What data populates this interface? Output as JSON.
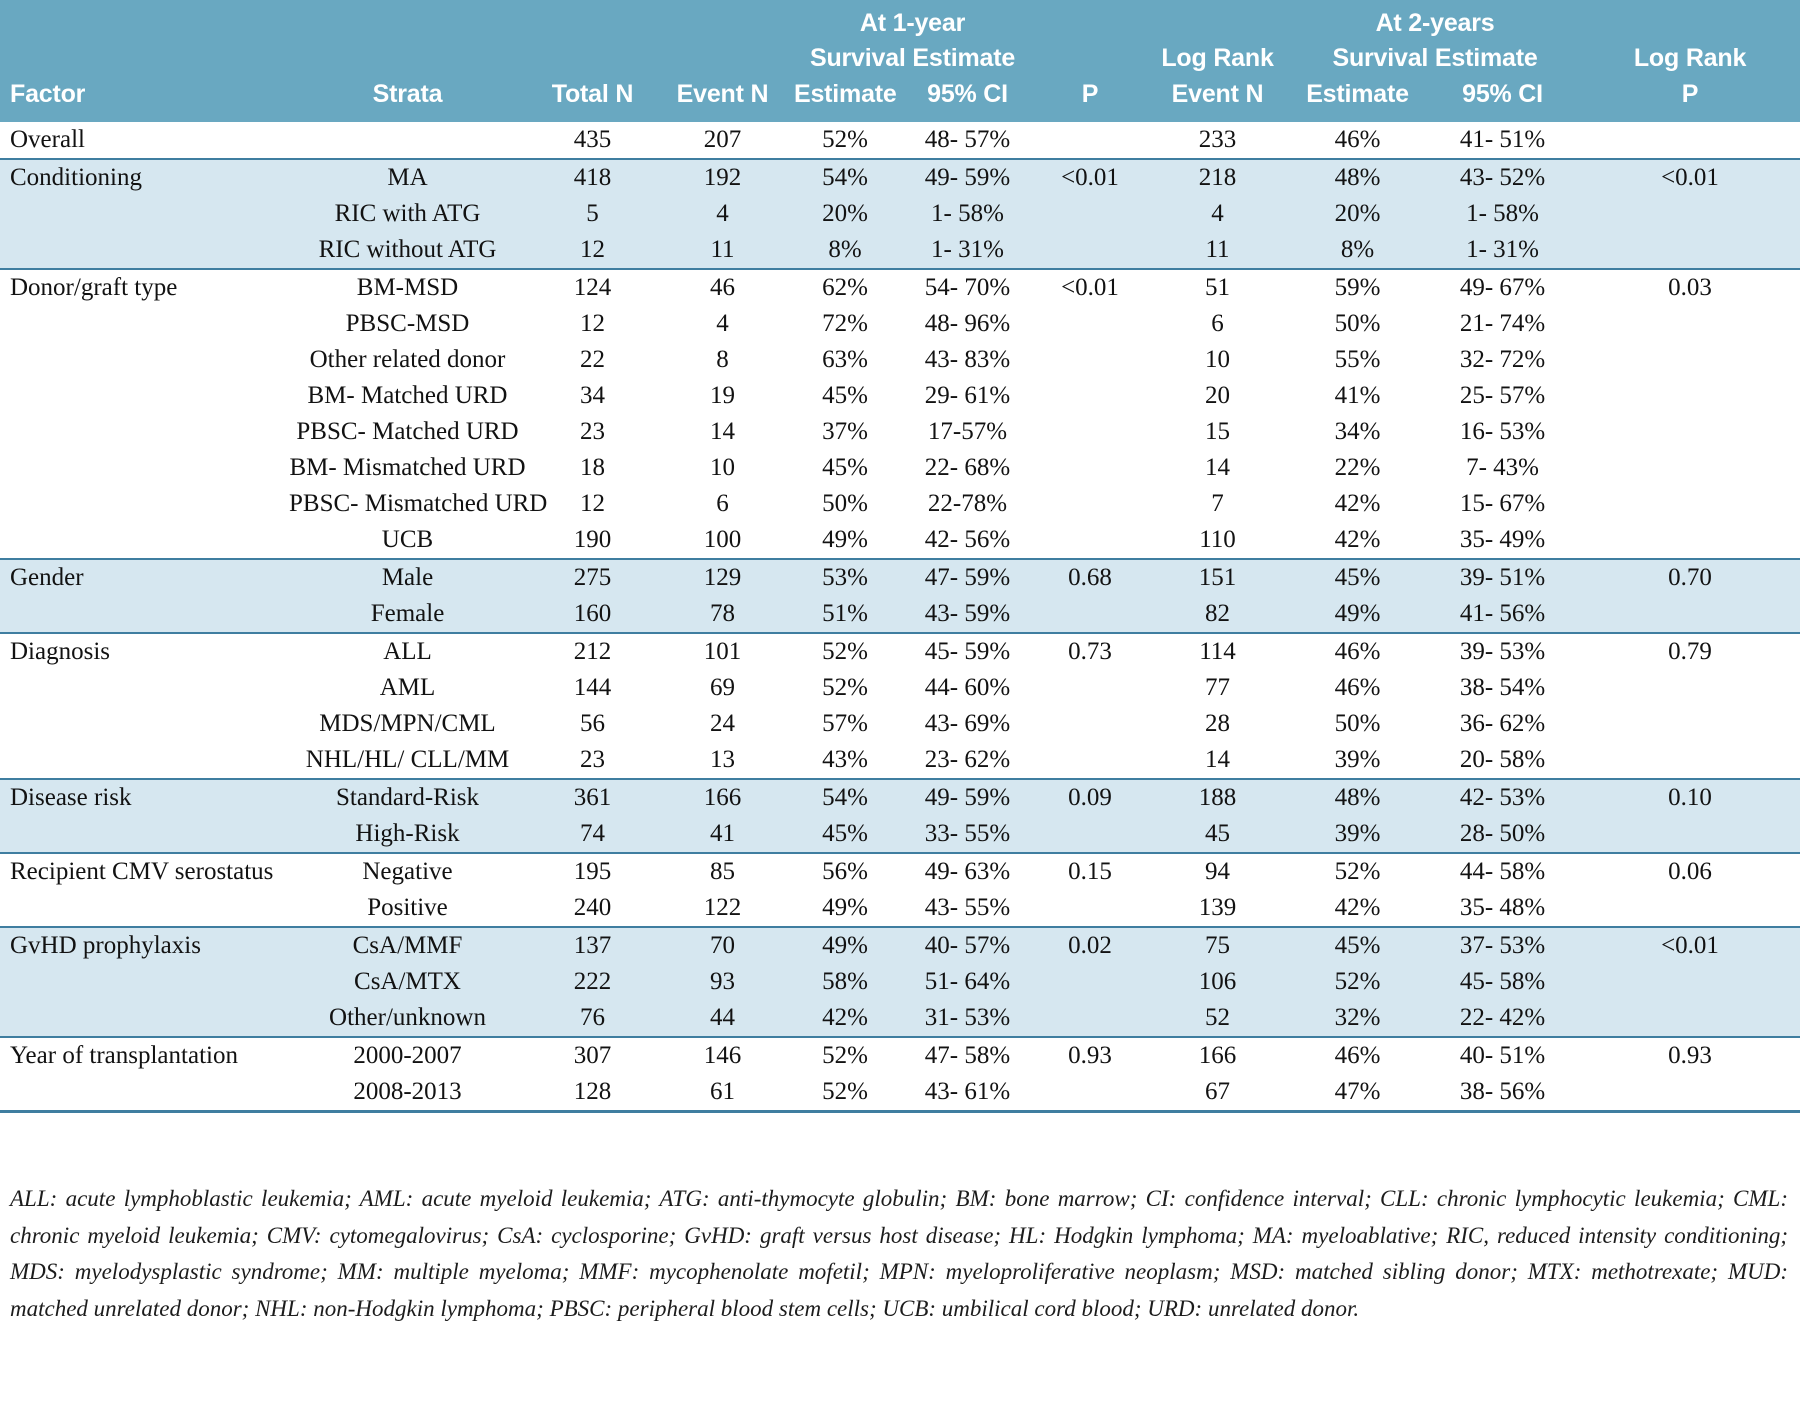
{
  "header": {
    "at_1_year": "At 1-year",
    "at_2_years": "At 2-years",
    "survival_estimate": "Survival Estimate",
    "log_rank": "Log Rank",
    "factor": "Factor",
    "strata": "Strata",
    "total_n": "Total N",
    "event_n": "Event N",
    "estimate": "Estimate",
    "ci_95": "95% CI",
    "p": "P"
  },
  "colors": {
    "header_bg": "#69a8c1",
    "row_shade": "#d6e7f0",
    "divider": "#3f7ea0",
    "header_text": "#ffffff",
    "body_text": "#121212"
  },
  "groups": [
    {
      "factor": "Overall",
      "rows": [
        [
          "",
          "435",
          "207",
          "52%",
          "48- 57%",
          "",
          "233",
          "46%",
          "41- 51%",
          ""
        ]
      ]
    },
    {
      "factor": "Conditioning",
      "rows": [
        [
          "MA",
          "418",
          "192",
          "54%",
          "49- 59%",
          "<0.01",
          "218",
          "48%",
          "43- 52%",
          "<0.01"
        ],
        [
          "RIC with ATG",
          "5",
          "4",
          "20%",
          "1- 58%",
          "",
          "4",
          "20%",
          "1- 58%",
          ""
        ],
        [
          "RIC without ATG",
          "12",
          "11",
          "8%",
          "1- 31%",
          "",
          "11",
          "8%",
          "1- 31%",
          ""
        ]
      ]
    },
    {
      "factor": "Donor/graft type",
      "rows": [
        [
          "BM-MSD",
          "124",
          "46",
          "62%",
          "54- 70%",
          "<0.01",
          "51",
          "59%",
          "49- 67%",
          "0.03"
        ],
        [
          "PBSC-MSD",
          "12",
          "4",
          "72%",
          "48- 96%",
          "",
          "6",
          "50%",
          "21- 74%",
          ""
        ],
        [
          "Other related donor",
          "22",
          "8",
          "63%",
          "43- 83%",
          "",
          "10",
          "55%",
          "32- 72%",
          ""
        ],
        [
          "BM- Matched URD",
          "34",
          "19",
          "45%",
          "29- 61%",
          "",
          "20",
          "41%",
          "25- 57%",
          ""
        ],
        [
          "PBSC- Matched URD",
          "23",
          "14",
          "37%",
          "17-57%",
          "",
          "15",
          "34%",
          "16- 53%",
          ""
        ],
        [
          "BM- Mismatched URD",
          "18",
          "10",
          "45%",
          "22- 68%",
          "",
          "14",
          "22%",
          "7- 43%",
          ""
        ],
        [
          "PBSC- Mismatched URD",
          "12",
          "6",
          "50%",
          "22-78%",
          "",
          "7",
          "42%",
          "15- 67%",
          ""
        ],
        [
          "UCB",
          "190",
          "100",
          "49%",
          "42- 56%",
          "",
          "110",
          "42%",
          "35- 49%",
          ""
        ]
      ]
    },
    {
      "factor": "Gender",
      "rows": [
        [
          "Male",
          "275",
          "129",
          "53%",
          "47- 59%",
          "0.68",
          "151",
          "45%",
          "39- 51%",
          "0.70"
        ],
        [
          "Female",
          "160",
          "78",
          "51%",
          "43- 59%",
          "",
          "82",
          "49%",
          "41- 56%",
          ""
        ]
      ]
    },
    {
      "factor": "Diagnosis",
      "rows": [
        [
          "ALL",
          "212",
          "101",
          "52%",
          "45- 59%",
          "0.73",
          "114",
          "46%",
          "39- 53%",
          "0.79"
        ],
        [
          "AML",
          "144",
          "69",
          "52%",
          "44- 60%",
          "",
          "77",
          "46%",
          "38- 54%",
          ""
        ],
        [
          "MDS/MPN/CML",
          "56",
          "24",
          "57%",
          "43- 69%",
          "",
          "28",
          "50%",
          "36- 62%",
          ""
        ],
        [
          "NHL/HL/ CLL/MM",
          "23",
          "13",
          "43%",
          "23- 62%",
          "",
          "14",
          "39%",
          "20- 58%",
          ""
        ]
      ]
    },
    {
      "factor": "Disease risk",
      "rows": [
        [
          "Standard-Risk",
          "361",
          "166",
          "54%",
          "49- 59%",
          "0.09",
          "188",
          "48%",
          "42- 53%",
          "0.10"
        ],
        [
          "High-Risk",
          "74",
          "41",
          "45%",
          "33- 55%",
          "",
          "45",
          "39%",
          "28- 50%",
          ""
        ]
      ]
    },
    {
      "factor": "Recipient CMV serostatus",
      "rows": [
        [
          "Negative",
          "195",
          "85",
          "56%",
          "49- 63%",
          "0.15",
          "94",
          "52%",
          "44- 58%",
          "0.06"
        ],
        [
          "Positive",
          "240",
          "122",
          "49%",
          "43- 55%",
          "",
          "139",
          "42%",
          "35- 48%",
          ""
        ]
      ]
    },
    {
      "factor": "GvHD prophylaxis",
      "rows": [
        [
          "CsA/MMF",
          "137",
          "70",
          "49%",
          "40- 57%",
          "0.02",
          "75",
          "45%",
          "37- 53%",
          "<0.01"
        ],
        [
          "CsA/MTX",
          "222",
          "93",
          "58%",
          "51- 64%",
          "",
          "106",
          "52%",
          "45- 58%",
          ""
        ],
        [
          "Other/unknown",
          "76",
          "44",
          "42%",
          "31- 53%",
          "",
          "52",
          "32%",
          "22- 42%",
          ""
        ]
      ]
    },
    {
      "factor": "Year of transplantation",
      "rows": [
        [
          "2000-2007",
          "307",
          "146",
          "52%",
          "47- 58%",
          "0.93",
          "166",
          "46%",
          "40- 51%",
          "0.93"
        ],
        [
          "2008-2013",
          "128",
          "61",
          "52%",
          "43- 61%",
          "",
          "67",
          "47%",
          "38- 56%",
          ""
        ]
      ]
    }
  ],
  "footnote": {
    "text": "ALL: acute lymphoblastic leukemia; AML: acute myeloid leukemia; ATG: anti-thymocyte globulin; BM: bone marrow; CI: confidence interval; CLL: chronic lymphocytic leukemia; CML: chronic myeloid leukemia; CMV: cytomegalovirus; CsA: cyclosporine; GvHD: graft versus host disease; HL: Hodgkin lymphoma; MA: myeloablative; RIC, reduced intensity conditioning; MDS: myelodysplastic syndrome; MM: multiple myeloma; MMF: mycophenolate mofetil; MPN: myeloproliferative neoplasm; MSD: matched sibling donor; MTX: methotrexate; MUD: matched unrelated donor; NHL: non-Hodgkin lymphoma; PBSC: peripheral blood stem cells; UCB: umbilical cord blood; URD: unrelated donor."
  }
}
